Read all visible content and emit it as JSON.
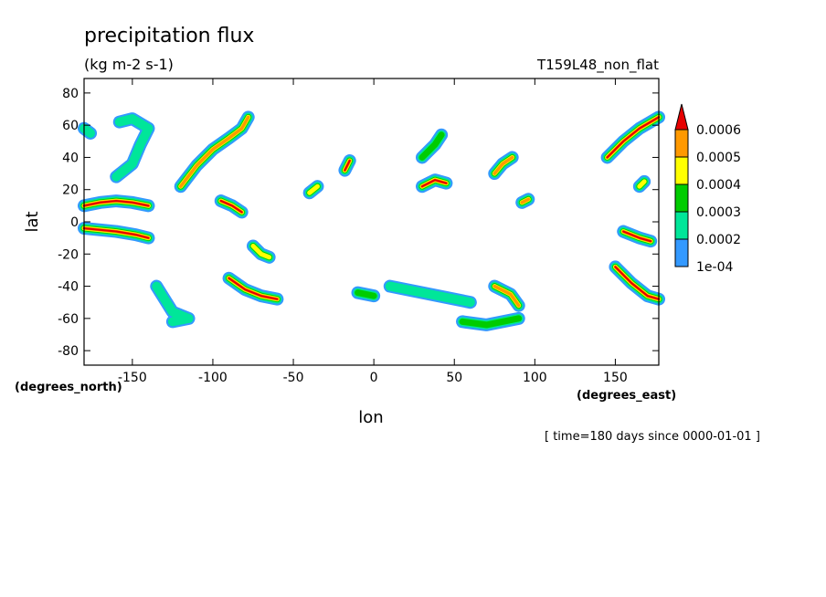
{
  "chart_data": {
    "type": "heatmap",
    "title": "precipitation flux",
    "units": "(kg m-2 s-1)",
    "run_label": "T159L48_non_flat",
    "xlabel": "lon",
    "ylabel": "lat",
    "x_units_label": "(degrees_east)",
    "y_units_label": "(degrees_north)",
    "time_label": "[ time=180 days since 0000-01-01 ]",
    "xlim": [
      -180,
      177
    ],
    "ylim": [
      -89,
      89
    ],
    "xticks": [
      -150,
      -100,
      -50,
      0,
      50,
      100,
      150
    ],
    "yticks": [
      80,
      60,
      40,
      20,
      0,
      -20,
      -40,
      -60,
      -80
    ],
    "colorbar": {
      "levels": [
        "1e-04",
        "0.0002",
        "0.0003",
        "0.0004",
        "0.0005",
        "0.0006"
      ],
      "colors": [
        "#3399ff",
        "#00e699",
        "#00cc00",
        "#ffff00",
        "#ff9900",
        "#e60000"
      ]
    },
    "features": [
      {
        "name": "ne-pacific-arc",
        "level": 1,
        "points": [
          [
            -160,
            28
          ],
          [
            -150,
            36
          ],
          [
            -145,
            48
          ],
          [
            -140,
            58
          ],
          [
            -150,
            64
          ],
          [
            -158,
            62
          ]
        ]
      },
      {
        "name": "west-pacific-hook",
        "level": 1,
        "points": [
          [
            -180,
            58
          ],
          [
            -176,
            55
          ]
        ]
      },
      {
        "name": "north-atlantic-front",
        "level": 4,
        "points": [
          [
            -120,
            22
          ],
          [
            -110,
            35
          ],
          [
            -100,
            45
          ],
          [
            -90,
            52
          ],
          [
            -82,
            58
          ],
          [
            -78,
            65
          ]
        ]
      },
      {
        "name": "itcz-east-pacific",
        "level": 5,
        "points": [
          [
            -180,
            10
          ],
          [
            -170,
            12
          ],
          [
            -160,
            13
          ],
          [
            -150,
            12
          ],
          [
            -140,
            10
          ]
        ]
      },
      {
        "name": "spcz-band",
        "level": 5,
        "points": [
          [
            -180,
            -4
          ],
          [
            -170,
            -5
          ],
          [
            -160,
            -6
          ],
          [
            -148,
            -8
          ],
          [
            -140,
            -10
          ]
        ]
      },
      {
        "name": "central-america-cell",
        "level": 5,
        "points": [
          [
            -95,
            13
          ],
          [
            -88,
            10
          ],
          [
            -82,
            6
          ]
        ]
      },
      {
        "name": "amazon-cell",
        "level": 3,
        "points": [
          [
            -75,
            -15
          ],
          [
            -70,
            -20
          ],
          [
            -65,
            -22
          ]
        ]
      },
      {
        "name": "sw-atlantic-front",
        "level": 5,
        "points": [
          [
            -90,
            -35
          ],
          [
            -80,
            -42
          ],
          [
            -70,
            -46
          ],
          [
            -60,
            -48
          ]
        ]
      },
      {
        "name": "south-pacific-arc",
        "level": 1,
        "points": [
          [
            -135,
            -40
          ],
          [
            -130,
            -48
          ],
          [
            -125,
            -56
          ],
          [
            -115,
            -60
          ],
          [
            -125,
            -62
          ]
        ]
      },
      {
        "name": "east-asia-cell",
        "level": 5,
        "points": [
          [
            -18,
            32
          ],
          [
            -15,
            38
          ]
        ]
      },
      {
        "name": "africa-cell",
        "level": 5,
        "points": [
          [
            30,
            22
          ],
          [
            38,
            26
          ],
          [
            45,
            24
          ]
        ]
      },
      {
        "name": "mediterranean-front",
        "level": 2,
        "points": [
          [
            30,
            40
          ],
          [
            38,
            48
          ],
          [
            42,
            54
          ]
        ]
      },
      {
        "name": "indian-ocean-front",
        "level": 1,
        "points": [
          [
            10,
            -40
          ],
          [
            40,
            -46
          ],
          [
            60,
            -50
          ]
        ]
      },
      {
        "name": "sw-indian-front",
        "level": 4,
        "points": [
          [
            75,
            -40
          ],
          [
            85,
            -45
          ],
          [
            90,
            -52
          ]
        ]
      },
      {
        "name": "south-indian-arc",
        "level": 2,
        "points": [
          [
            90,
            -60
          ],
          [
            70,
            -64
          ],
          [
            55,
            -62
          ]
        ]
      },
      {
        "name": "north-indian-cell",
        "level": 4,
        "points": [
          [
            75,
            30
          ],
          [
            80,
            36
          ],
          [
            86,
            40
          ]
        ]
      },
      {
        "name": "sea-cell",
        "level": 4,
        "points": [
          [
            92,
            12
          ],
          [
            96,
            14
          ]
        ]
      },
      {
        "name": "nw-pacific-front",
        "level": 5,
        "points": [
          [
            145,
            40
          ],
          [
            155,
            50
          ],
          [
            165,
            58
          ],
          [
            177,
            65
          ]
        ]
      },
      {
        "name": "sw-pacific-front",
        "level": 5,
        "points": [
          [
            150,
            -28
          ],
          [
            160,
            -38
          ],
          [
            170,
            -46
          ],
          [
            177,
            -48
          ]
        ]
      },
      {
        "name": "tropical-west-pacific",
        "level": 5,
        "points": [
          [
            155,
            -6
          ],
          [
            165,
            -10
          ],
          [
            172,
            -12
          ]
        ]
      },
      {
        "name": "southern-atlantic-patch",
        "level": 2,
        "points": [
          [
            -10,
            -44
          ],
          [
            0,
            -46
          ]
        ]
      },
      {
        "name": "west-africa-cell",
        "level": 3,
        "points": [
          [
            -40,
            18
          ],
          [
            -35,
            22
          ]
        ]
      },
      {
        "name": "north-pacific-small",
        "level": 3,
        "points": [
          [
            165,
            22
          ],
          [
            168,
            25
          ]
        ]
      }
    ]
  }
}
